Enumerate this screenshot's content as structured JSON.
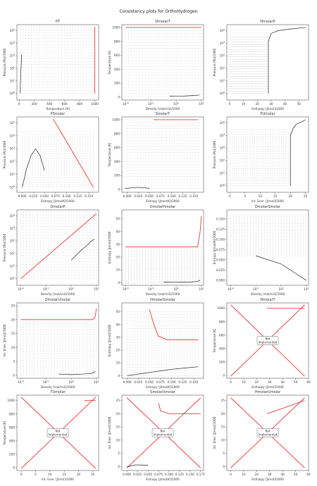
{
  "figure_title": "Consistency plots for OrthoHydrogen",
  "chart_data": [
    {
      "title": "PT",
      "type": "scatter",
      "xlabel": "Temperature [K]",
      "ylabel": "Pressure [Pa]/1000",
      "xscale": "linear",
      "yscale": "log",
      "xlim": [
        -30,
        1050
      ],
      "ylim": [
        0.3,
        300000
      ],
      "xticks": [
        0,
        200,
        400,
        600,
        800,
        1000
      ],
      "yticks": [
        1,
        10,
        100,
        1000,
        10000,
        100000
      ],
      "ytick_labels": [
        "10^0",
        "10^1",
        "10^2",
        "10^3",
        "10^4",
        "10^5"
      ],
      "series": [
        {
          "kind": "grid",
          "x": [
            15,
            1000
          ],
          "y": [
            1,
            200000
          ]
        },
        {
          "kind": "curve",
          "x": [
            14,
            15,
            17,
            20,
            25,
            30,
            33
          ],
          "y": [
            1,
            3,
            8,
            30,
            120,
            500,
            1300
          ]
        },
        {
          "kind": "line",
          "x": [
            1000,
            1000
          ],
          "y": [
            1,
            200000
          ]
        }
      ]
    },
    {
      "title": "DmolarT",
      "type": "scatter",
      "xlabel": "Density [mol/m3]/1000",
      "ylabel": "Temperature [K]",
      "xscale": "log",
      "yscale": "linear",
      "xlim": [
        5e-05,
        150
      ],
      "ylim": [
        -40,
        1040
      ],
      "xticks": [
        0.0001,
        0.01,
        1,
        100
      ],
      "xtick_labels": [
        "10^-4",
        "10^-2",
        "10^0",
        "10^2"
      ],
      "yticks": [
        0,
        200,
        400,
        600,
        800,
        1000
      ],
      "series": [
        {
          "kind": "grid",
          "x": [
            0.0001,
            100
          ],
          "y": [
            14,
            1000
          ]
        },
        {
          "kind": "curve",
          "x": [
            0.3,
            1,
            5,
            20,
            60,
            70
          ],
          "y": [
            14,
            15,
            18,
            24,
            30,
            33
          ]
        },
        {
          "kind": "line",
          "x": [
            0.0001,
            100
          ],
          "y": [
            1000,
            1000
          ]
        }
      ]
    },
    {
      "title": "HmolarP",
      "type": "scatter",
      "xlabel": "Enthalpy [J/mol]/1000",
      "ylabel": "Pressure [Pa]/1000",
      "xscale": "linear",
      "yscale": "log",
      "xlim": [
        -2,
        57
      ],
      "ylim": [
        0.3,
        300000
      ],
      "xticks": [
        0,
        10,
        20,
        30,
        40,
        50
      ],
      "yticks": [
        1,
        10,
        100,
        1000,
        10000,
        100000
      ],
      "ytick_labels": [
        "10^0",
        "10^1",
        "10^2",
        "10^3",
        "10^4",
        "10^5"
      ],
      "series": [
        {
          "kind": "grid",
          "x": [
            0,
            28
          ],
          "y": [
            1,
            30000
          ]
        },
        {
          "kind": "curve",
          "x": [
            28,
            28,
            30,
            35,
            45,
            55
          ],
          "y": [
            1,
            15000,
            60000,
            100000,
            140000,
            180000
          ]
        }
      ]
    },
    {
      "title": "PSmolar",
      "type": "scatter",
      "xlabel": "Entropy [J/mol/K]/1000",
      "ylabel": "Pressure [Pa]/1000",
      "xscale": "linear",
      "yscale": "log",
      "xlim": [
        -0.012,
        0.172
      ],
      "ylim": [
        0.4,
        300000
      ],
      "xticks": [
        0.0,
        0.025,
        0.05,
        0.075,
        0.1,
        0.125,
        0.15
      ],
      "xtick_labels": [
        "0.000",
        "0.025",
        "0.050",
        "0.075",
        "0.100",
        "0.125",
        "0.150"
      ],
      "yticks": [
        1,
        10,
        100,
        1000,
        10000,
        100000
      ],
      "ytick_labels": [
        "10^0",
        "10^1",
        "10^2",
        "10^3",
        "10^4",
        "10^5"
      ],
      "series": [
        {
          "kind": "grid",
          "x": [
            0,
            0.16
          ],
          "y": [
            1,
            20000
          ]
        },
        {
          "kind": "curve",
          "x": [
            0.0,
            0.01,
            0.02,
            0.03,
            0.04,
            0.05
          ],
          "y": [
            1,
            30,
            300,
            1000,
            300,
            20
          ]
        },
        {
          "kind": "line",
          "x": [
            0.07,
            0.16
          ],
          "y": [
            200000,
            1
          ]
        }
      ]
    },
    {
      "title": "SmolarT",
      "type": "scatter",
      "xlabel": "Entropy [J/mol/K]/1000",
      "ylabel": "Temperature [K]",
      "xscale": "linear",
      "yscale": "linear",
      "xlim": [
        -0.012,
        0.172
      ],
      "ylim": [
        -40,
        1040
      ],
      "xticks": [
        0.0,
        0.025,
        0.05,
        0.075,
        0.1,
        0.125,
        0.15
      ],
      "xtick_labels": [
        "0.000",
        "0.025",
        "0.050",
        "0.075",
        "0.100",
        "0.125",
        "0.150"
      ],
      "yticks": [
        0,
        200,
        400,
        600,
        800,
        1000
      ],
      "series": [
        {
          "kind": "grid",
          "x": [
            0.0,
            0.16
          ],
          "y": [
            14,
            1000
          ]
        },
        {
          "kind": "curve",
          "x": [
            -0.005,
            0.01,
            0.025,
            0.04,
            0.05
          ],
          "y": [
            14,
            25,
            30,
            25,
            14
          ]
        },
        {
          "kind": "line",
          "x": [
            0.06,
            0.16
          ],
          "y": [
            1000,
            1000
          ]
        }
      ]
    },
    {
      "title": "PUmolar",
      "type": "scatter",
      "xlabel": "Int. Ener. [J/mol]/1000",
      "ylabel": "Pressure [Pa]/1000",
      "xscale": "linear",
      "yscale": "log",
      "xlim": [
        -1,
        26
      ],
      "ylim": [
        0.3,
        300000
      ],
      "xticks": [
        0,
        5,
        10,
        15,
        20,
        25
      ],
      "yticks": [
        1,
        10,
        100,
        1000,
        10000,
        100000
      ],
      "ytick_labels": [
        "10^0",
        "10^1",
        "10^2",
        "10^3",
        "10^4",
        "10^5"
      ],
      "series": [
        {
          "kind": "grid",
          "x": [
            0,
            20
          ],
          "y": [
            1,
            30000
          ]
        },
        {
          "kind": "curve",
          "x": [
            20,
            20,
            21,
            22,
            24,
            25
          ],
          "y": [
            1,
            10000,
            40000,
            80000,
            130000,
            180000
          ]
        }
      ]
    },
    {
      "title": "DmolarP",
      "type": "scatter",
      "xlabel": "Density [mol/m3]/1000",
      "ylabel": "Pressure [Pa]/1000",
      "xscale": "log",
      "yscale": "log",
      "xlim": [
        5e-05,
        150
      ],
      "ylim": [
        0.3,
        300000
      ],
      "xticks": [
        0.0001,
        0.01,
        1,
        100
      ],
      "xtick_labels": [
        "10^-4",
        "10^-2",
        "10^0",
        "10^2"
      ],
      "yticks": [
        1,
        10,
        100,
        1000,
        10000,
        100000
      ],
      "ytick_labels": [
        "10^0",
        "10^1",
        "10^2",
        "10^3",
        "10^4",
        "10^5"
      ],
      "series": [
        {
          "kind": "grid",
          "x": [
            0.0001,
            100
          ],
          "y": [
            1,
            200000
          ]
        },
        {
          "kind": "curve",
          "x": [
            1,
            5,
            20,
            40,
            60,
            70
          ],
          "y": [
            30,
            150,
            500,
            1000,
            1300,
            1300
          ]
        },
        {
          "kind": "line",
          "x": [
            0.0001,
            100
          ],
          "y": [
            1,
            150000
          ]
        }
      ]
    },
    {
      "title": "DmolarHmolar",
      "type": "scatter",
      "xlabel": "Density [mol/m3]/1000",
      "ylabel": "Enthalpy [J/mol]/1000",
      "xscale": "log",
      "yscale": "linear",
      "xlim": [
        5e-05,
        150
      ],
      "ylim": [
        -2,
        57
      ],
      "xticks": [
        0.0001,
        0.01,
        1,
        100
      ],
      "xtick_labels": [
        "10^-4",
        "10^-2",
        "10^0",
        "10^2"
      ],
      "yticks": [
        0,
        10,
        20,
        30,
        40,
        50
      ],
      "series": [
        {
          "kind": "grid",
          "x": [
            0.0001,
            100
          ],
          "y": [
            0,
            28
          ]
        },
        {
          "kind": "curve",
          "x": [
            0.1,
            1,
            10,
            50,
            80
          ],
          "y": [
            0.5,
            0.3,
            0.5,
            1,
            2
          ]
        },
        {
          "kind": "line",
          "x": [
            0.0001,
            50,
            80,
            100
          ],
          "y": [
            28,
            28,
            40,
            52
          ]
        }
      ]
    },
    {
      "title": "DmolarSmolar",
      "type": "scatter",
      "xlabel": "Density [mol/m3]/1000",
      "ylabel": "Entropy [J/mol/K]/1000",
      "xscale": "log",
      "yscale": "linear",
      "xlim": [
        5e-05,
        150
      ],
      "ylim": [
        -0.012,
        0.172
      ],
      "xticks": [
        0.0001,
        0.01,
        1,
        100
      ],
      "xtick_labels": [
        "10^-4",
        "10^-2",
        "10^0",
        "10^2"
      ],
      "yticks": [
        0.0,
        0.025,
        0.05,
        0.075,
        0.1,
        0.125,
        0.15
      ],
      "ytick_labels": [
        "0.000",
        "0.025",
        "0.050",
        "0.075",
        "0.100",
        "0.125",
        "0.150"
      ],
      "series": [
        {
          "kind": "grid",
          "x": [
            0.0001,
            100
          ],
          "y": [
            0.06,
            0.16
          ]
        },
        {
          "kind": "curve",
          "x": [
            0.01,
            1,
            10,
            100
          ],
          "y": [
            0.06,
            0.04,
            0.02,
            0.0
          ]
        }
      ]
    },
    {
      "title": "DmolarUmolar",
      "type": "scatter",
      "xlabel": "Density [mol/m3]/1000",
      "ylabel": "Int. Ener. [J/mol]/1000",
      "xscale": "log",
      "yscale": "linear",
      "xlim": [
        5e-05,
        150
      ],
      "ylim": [
        -1,
        26
      ],
      "xticks": [
        0.0001,
        0.01,
        1,
        100
      ],
      "xtick_labels": [
        "10^-4",
        "10^-2",
        "10^0",
        "10^2"
      ],
      "yticks": [
        0,
        5,
        10,
        15,
        20,
        25
      ],
      "series": [
        {
          "kind": "grid",
          "x": [
            0.0001,
            100
          ],
          "y": [
            0,
            20
          ]
        },
        {
          "kind": "curve",
          "x": [
            0.1,
            1,
            10,
            50,
            80
          ],
          "y": [
            0.5,
            0.3,
            0.5,
            0.8,
            1.5
          ]
        },
        {
          "kind": "line",
          "x": [
            0.0001,
            50,
            80,
            100
          ],
          "y": [
            20,
            20,
            21,
            24
          ]
        }
      ]
    },
    {
      "title": "HmolarSmolar",
      "type": "scatter",
      "xlabel": "Entropy [J/mol/K]/1000",
      "ylabel": "Enthalpy [J/mol]/1000",
      "xscale": "linear",
      "yscale": "linear",
      "xlim": [
        -0.012,
        0.172
      ],
      "ylim": [
        -2,
        57
      ],
      "xticks": [
        0.0,
        0.025,
        0.05,
        0.075,
        0.1,
        0.125,
        0.15
      ],
      "xtick_labels": [
        "0.000",
        "0.025",
        "0.050",
        "0.075",
        "0.100",
        "0.125",
        "0.150"
      ],
      "yticks": [
        0,
        10,
        20,
        30,
        40,
        50
      ],
      "series": [
        {
          "kind": "grid",
          "x": [
            0.0,
            0.16
          ],
          "y": [
            0,
            50
          ]
        },
        {
          "kind": "curve",
          "x": [
            0.0,
            0.02,
            0.04,
            0.06,
            0.08,
            0.1,
            0.13,
            0.16
          ],
          "y": [
            0,
            1,
            2,
            3,
            4,
            5,
            6,
            7
          ]
        },
        {
          "kind": "line",
          "x": [
            0.05,
            0.06,
            0.07,
            0.09,
            0.16
          ],
          "y": [
            52,
            40,
            31,
            28,
            28
          ]
        }
      ]
    },
    {
      "title": "HmolarT",
      "type": "line",
      "xlabel": "Enthalpy [J/mol]/1000",
      "ylabel": "Temperature [K]",
      "xscale": "linear",
      "yscale": "linear",
      "xlim": [
        -3,
        60
      ],
      "ylim": [
        -40,
        1080
      ],
      "xticks": [
        0,
        10,
        20,
        30,
        40,
        50,
        60
      ],
      "yticks": [
        0,
        200,
        400,
        600,
        800,
        1000
      ],
      "annotation": "Not\nImplemented",
      "series": [
        {
          "kind": "line",
          "x": [
            0,
            57
          ],
          "y": [
            1050,
            -10
          ]
        },
        {
          "kind": "line",
          "x": [
            0,
            57
          ],
          "y": [
            -10,
            1050
          ]
        },
        {
          "kind": "line",
          "x": [
            28,
            57
          ],
          "y": [
            1000,
            1000
          ]
        }
      ]
    },
    {
      "title": "TUmolar",
      "type": "line",
      "xlabel": "Int. Ener. [J/mol]/1000",
      "ylabel": "Temperature [K]",
      "xscale": "linear",
      "yscale": "linear",
      "xlim": [
        -1.5,
        27
      ],
      "ylim": [
        -40,
        1080
      ],
      "xticks": [
        0,
        5,
        10,
        15,
        20,
        25
      ],
      "yticks": [
        0,
        200,
        400,
        600,
        800,
        1000
      ],
      "annotation": "Not\nImplemented",
      "series": [
        {
          "kind": "line",
          "x": [
            0,
            26
          ],
          "y": [
            1050,
            -10
          ]
        },
        {
          "kind": "line",
          "x": [
            0,
            26
          ],
          "y": [
            -10,
            1050
          ]
        },
        {
          "kind": "line",
          "x": [
            22,
            26
          ],
          "y": [
            1000,
            1000
          ]
        }
      ]
    },
    {
      "title": "SmolarUmolar",
      "type": "line",
      "xlabel": "Entropy [J/mol/K]/1000",
      "ylabel": "Int. Ener. [J/mol]/1000",
      "xscale": "linear",
      "yscale": "linear",
      "xlim": [
        -0.012,
        0.182
      ],
      "ylim": [
        -1.5,
        27
      ],
      "xticks": [
        0.0,
        0.025,
        0.05,
        0.075,
        0.1,
        0.125,
        0.15,
        0.175
      ],
      "xtick_labels": [
        "0.000",
        "0.025",
        "0.050",
        "0.075",
        "0.100",
        "0.125",
        "0.150",
        "0.175"
      ],
      "yticks": [
        0,
        5,
        10,
        15,
        20,
        25
      ],
      "annotation": "Not\nImplemented",
      "series": [
        {
          "kind": "line",
          "x": [
            0,
            0.175
          ],
          "y": [
            26,
            -0.5
          ]
        },
        {
          "kind": "line",
          "x": [
            0,
            0.175
          ],
          "y": [
            -0.5,
            26
          ]
        },
        {
          "kind": "line",
          "x": [
            0.075,
            0.08,
            0.1,
            0.175
          ],
          "y": [
            24,
            21,
            20,
            20
          ]
        },
        {
          "kind": "curve",
          "x": [
            0.0,
            0.01,
            0.02,
            0.03,
            0.05
          ],
          "y": [
            -0.2,
            0.3,
            0.6,
            0.6,
            0.5
          ]
        }
      ]
    },
    {
      "title": "HmolarUmolar",
      "type": "line",
      "xlabel": "Enthalpy [J/mol]/1000",
      "ylabel": "Int. Ener. [J/mol]/1000",
      "xscale": "linear",
      "yscale": "linear",
      "xlim": [
        -3,
        60
      ],
      "ylim": [
        -1.5,
        27
      ],
      "xticks": [
        0,
        10,
        20,
        30,
        40,
        50,
        60
      ],
      "yticks": [
        0,
        5,
        10,
        15,
        20,
        25
      ],
      "annotation": "Not\nImplemented",
      "series": [
        {
          "kind": "line",
          "x": [
            0,
            57
          ],
          "y": [
            26,
            -0.5
          ]
        },
        {
          "kind": "line",
          "x": [
            0,
            57
          ],
          "y": [
            -0.5,
            26
          ]
        },
        {
          "kind": "line",
          "x": [
            28,
            40,
            57
          ],
          "y": [
            20,
            22,
            25
          ]
        }
      ]
    }
  ]
}
